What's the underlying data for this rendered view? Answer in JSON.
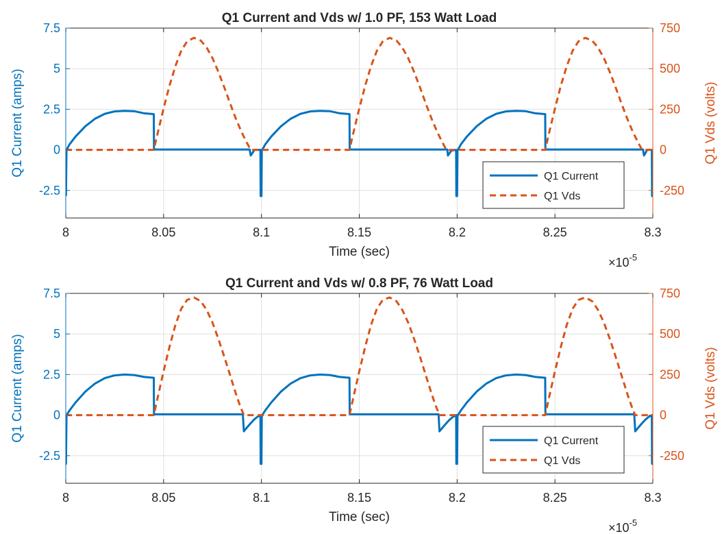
{
  "colors": {
    "current": "#0072BD",
    "vds": "#D95319",
    "axis": "#262626",
    "grid": "#dfdfdf",
    "background": "#ffffff"
  },
  "chart_data": [
    {
      "type": "line",
      "title": "Q1 Current and Vds w/ 1.0 PF, 153 Watt Load",
      "xlabel": "Time (sec)",
      "x_exponent": "×10",
      "x_exponent_power": "-5",
      "ylabel_left": "Q1 Current (amps)",
      "ylabel_right": "Q1 Vds (volts)",
      "xlim": [
        8.0,
        8.3
      ],
      "ylim_left": [
        -4.2,
        7.5
      ],
      "ylim_right": [
        -420,
        750
      ],
      "x_ticks": [
        8.0,
        8.05,
        8.1,
        8.15,
        8.2,
        8.25,
        8.3
      ],
      "x_tick_labels": [
        "8",
        "8.05",
        "8.1",
        "8.15",
        "8.2",
        "8.25",
        "8.3"
      ],
      "y_left_ticks": [
        -2.5,
        0,
        2.5,
        5,
        7.5
      ],
      "y_left_tick_labels": [
        "-2.5",
        "0",
        "2.5",
        "5",
        "7.5"
      ],
      "y_right_ticks": [
        -250,
        0,
        250,
        500,
        750
      ],
      "y_right_tick_labels": [
        "-250",
        "0",
        "250",
        "500",
        "750"
      ],
      "grid": true,
      "legend_position": "bottom-right",
      "series": [
        {
          "name": "Q1 Current",
          "axis": "left",
          "style": "solid",
          "x": [
            8.0,
            8.0001,
            8.0004,
            8.002,
            8.005,
            8.01,
            8.015,
            8.02,
            8.025,
            8.03,
            8.035,
            8.04,
            8.045,
            8.0451,
            8.06,
            8.08,
            8.094,
            8.0945,
            8.0955,
            8.0962,
            8.0965,
            8.0995,
            8.0996,
            8.0998,
            8.1,
            8.1002,
            8.1004,
            8.102,
            8.105,
            8.11,
            8.115,
            8.12,
            8.125,
            8.13,
            8.135,
            8.14,
            8.145,
            8.1451,
            8.16,
            8.18,
            8.195,
            8.1953,
            8.1963,
            8.197,
            8.1995,
            8.1996,
            8.1998,
            8.2,
            8.2002,
            8.2004,
            8.202,
            8.205,
            8.21,
            8.215,
            8.22,
            8.225,
            8.23,
            8.235,
            8.24,
            8.245,
            8.2451,
            8.26,
            8.28,
            8.295,
            8.2955,
            8.2965,
            8.297,
            8.2995,
            8.2996,
            8.2998,
            8.3
          ],
          "y": [
            -2.8,
            -2.8,
            0.0,
            0.35,
            0.82,
            1.45,
            1.92,
            2.22,
            2.37,
            2.4,
            2.38,
            2.25,
            2.2,
            0.02,
            0.02,
            0.02,
            0.02,
            -0.35,
            -0.18,
            -0.05,
            0.0,
            0.0,
            -2.85,
            -2.85,
            -2.85,
            0.0,
            0.0,
            0.35,
            0.82,
            1.45,
            1.92,
            2.22,
            2.37,
            2.4,
            2.38,
            2.25,
            2.2,
            0.02,
            0.02,
            0.02,
            0.02,
            -0.35,
            -0.18,
            -0.05,
            0.0,
            -2.85,
            -2.85,
            -2.85,
            0.0,
            0.0,
            0.35,
            0.82,
            1.45,
            1.92,
            2.22,
            2.37,
            2.4,
            2.38,
            2.25,
            2.2,
            0.02,
            0.02,
            0.02,
            0.02,
            -0.35,
            -0.15,
            0.0,
            0.0,
            -2.85,
            -2.85,
            -2.85
          ]
        },
        {
          "name": "Q1 Vds",
          "axis": "right",
          "style": "dashed",
          "x": [
            8.0,
            8.01,
            8.02,
            8.03,
            8.045,
            8.047,
            8.05,
            8.053,
            8.056,
            8.059,
            8.062,
            8.0655,
            8.069,
            8.072,
            8.075,
            8.078,
            8.081,
            8.084,
            8.087,
            8.09,
            8.0925,
            8.0945,
            8.1,
            8.11,
            8.12,
            8.13,
            8.145,
            8.147,
            8.15,
            8.153,
            8.156,
            8.159,
            8.162,
            8.1655,
            8.169,
            8.172,
            8.175,
            8.178,
            8.181,
            8.184,
            8.187,
            8.19,
            8.1925,
            8.1945,
            8.2,
            8.21,
            8.22,
            8.23,
            8.245,
            8.247,
            8.25,
            8.253,
            8.256,
            8.259,
            8.262,
            8.2655,
            8.269,
            8.272,
            8.275,
            8.278,
            8.281,
            8.284,
            8.287,
            8.29,
            8.2925,
            8.2945,
            8.3
          ],
          "y": [
            0,
            0,
            0,
            0,
            0,
            105,
            255,
            395,
            515,
            610,
            668,
            690,
            673,
            630,
            565,
            480,
            385,
            285,
            190,
            105,
            45,
            0,
            0,
            0,
            0,
            0,
            0,
            105,
            255,
            395,
            515,
            610,
            668,
            690,
            673,
            630,
            565,
            480,
            385,
            285,
            190,
            105,
            45,
            0,
            0,
            0,
            0,
            0,
            0,
            105,
            255,
            395,
            515,
            610,
            668,
            690,
            673,
            630,
            565,
            480,
            385,
            285,
            190,
            105,
            45,
            0,
            0
          ]
        }
      ]
    },
    {
      "type": "line",
      "title": "Q1 Current and Vds w/ 0.8 PF, 76 Watt Load",
      "xlabel": "Time (sec)",
      "x_exponent": "×10",
      "x_exponent_power": "-5",
      "ylabel_left": "Q1 Current (amps)",
      "ylabel_right": "Q1 Vds (volts)",
      "xlim": [
        8.0,
        8.3
      ],
      "ylim_left": [
        -4.2,
        7.5
      ],
      "ylim_right": [
        -420,
        750
      ],
      "x_ticks": [
        8.0,
        8.05,
        8.1,
        8.15,
        8.2,
        8.25,
        8.3
      ],
      "x_tick_labels": [
        "8",
        "8.05",
        "8.1",
        "8.15",
        "8.2",
        "8.25",
        "8.3"
      ],
      "y_left_ticks": [
        -2.5,
        0,
        2.5,
        5,
        7.5
      ],
      "y_left_tick_labels": [
        "-2.5",
        "0",
        "2.5",
        "5",
        "7.5"
      ],
      "y_right_ticks": [
        -250,
        0,
        250,
        500,
        750
      ],
      "y_right_tick_labels": [
        "-250",
        "0",
        "250",
        "500",
        "750"
      ],
      "grid": true,
      "legend_position": "bottom-right",
      "series": [
        {
          "name": "Q1 Current",
          "axis": "left",
          "style": "solid",
          "x": [
            8.0,
            8.0001,
            8.0004,
            8.002,
            8.005,
            8.01,
            8.015,
            8.02,
            8.025,
            8.03,
            8.035,
            8.04,
            8.045,
            8.0451,
            8.06,
            8.08,
            8.0905,
            8.091,
            8.0925,
            8.0945,
            8.096,
            8.098,
            8.0995,
            8.0996,
            8.0998,
            8.1,
            8.1002,
            8.1004,
            8.102,
            8.105,
            8.11,
            8.115,
            8.12,
            8.125,
            8.13,
            8.135,
            8.14,
            8.145,
            8.1451,
            8.16,
            8.18,
            8.1905,
            8.191,
            8.1925,
            8.1945,
            8.196,
            8.198,
            8.1995,
            8.1996,
            8.1998,
            8.2,
            8.2002,
            8.2004,
            8.202,
            8.205,
            8.21,
            8.215,
            8.22,
            8.225,
            8.23,
            8.235,
            8.24,
            8.245,
            8.2451,
            8.26,
            8.28,
            8.2905,
            8.291,
            8.2925,
            8.2945,
            8.296,
            8.298,
            8.2995,
            8.2996,
            8.2998,
            8.3
          ],
          "y": [
            -3.0,
            -3.0,
            0.0,
            0.3,
            0.78,
            1.45,
            1.95,
            2.28,
            2.45,
            2.5,
            2.47,
            2.35,
            2.3,
            0.05,
            0.05,
            0.05,
            0.05,
            -1.0,
            -0.78,
            -0.5,
            -0.3,
            -0.1,
            0.0,
            -3.0,
            -3.0,
            -3.0,
            0.0,
            0.0,
            0.3,
            0.78,
            1.45,
            1.95,
            2.28,
            2.45,
            2.5,
            2.47,
            2.35,
            2.3,
            0.05,
            0.05,
            0.05,
            0.05,
            -1.0,
            -0.78,
            -0.5,
            -0.3,
            -0.1,
            0.0,
            -3.0,
            -3.0,
            -3.0,
            0.0,
            0.0,
            0.3,
            0.78,
            1.45,
            1.95,
            2.28,
            2.45,
            2.5,
            2.47,
            2.35,
            2.3,
            0.05,
            0.05,
            0.05,
            0.05,
            -1.0,
            -0.78,
            -0.5,
            -0.3,
            -0.1,
            0.0,
            -3.0,
            -3.0,
            -3.0
          ]
        },
        {
          "name": "Q1 Vds",
          "axis": "right",
          "style": "dashed",
          "x": [
            8.0,
            8.01,
            8.02,
            8.03,
            8.045,
            8.047,
            8.05,
            8.053,
            8.056,
            8.059,
            8.062,
            8.0655,
            8.069,
            8.072,
            8.075,
            8.078,
            8.081,
            8.084,
            8.087,
            8.089,
            8.091,
            8.1,
            8.11,
            8.12,
            8.13,
            8.145,
            8.147,
            8.15,
            8.153,
            8.156,
            8.159,
            8.162,
            8.1655,
            8.169,
            8.172,
            8.175,
            8.178,
            8.181,
            8.184,
            8.187,
            8.189,
            8.191,
            8.2,
            8.21,
            8.22,
            8.23,
            8.245,
            8.247,
            8.25,
            8.253,
            8.256,
            8.259,
            8.262,
            8.2655,
            8.269,
            8.272,
            8.275,
            8.278,
            8.281,
            8.284,
            8.287,
            8.289,
            8.291,
            8.3
          ],
          "y": [
            0,
            0,
            0,
            0,
            0,
            110,
            270,
            420,
            555,
            655,
            710,
            725,
            702,
            648,
            570,
            470,
            360,
            245,
            130,
            60,
            0,
            0,
            0,
            0,
            0,
            0,
            110,
            270,
            420,
            555,
            655,
            710,
            725,
            702,
            648,
            570,
            470,
            360,
            245,
            130,
            60,
            0,
            0,
            0,
            0,
            0,
            0,
            110,
            270,
            420,
            555,
            655,
            710,
            725,
            702,
            648,
            570,
            470,
            360,
            245,
            130,
            60,
            0,
            0
          ]
        }
      ]
    }
  ]
}
